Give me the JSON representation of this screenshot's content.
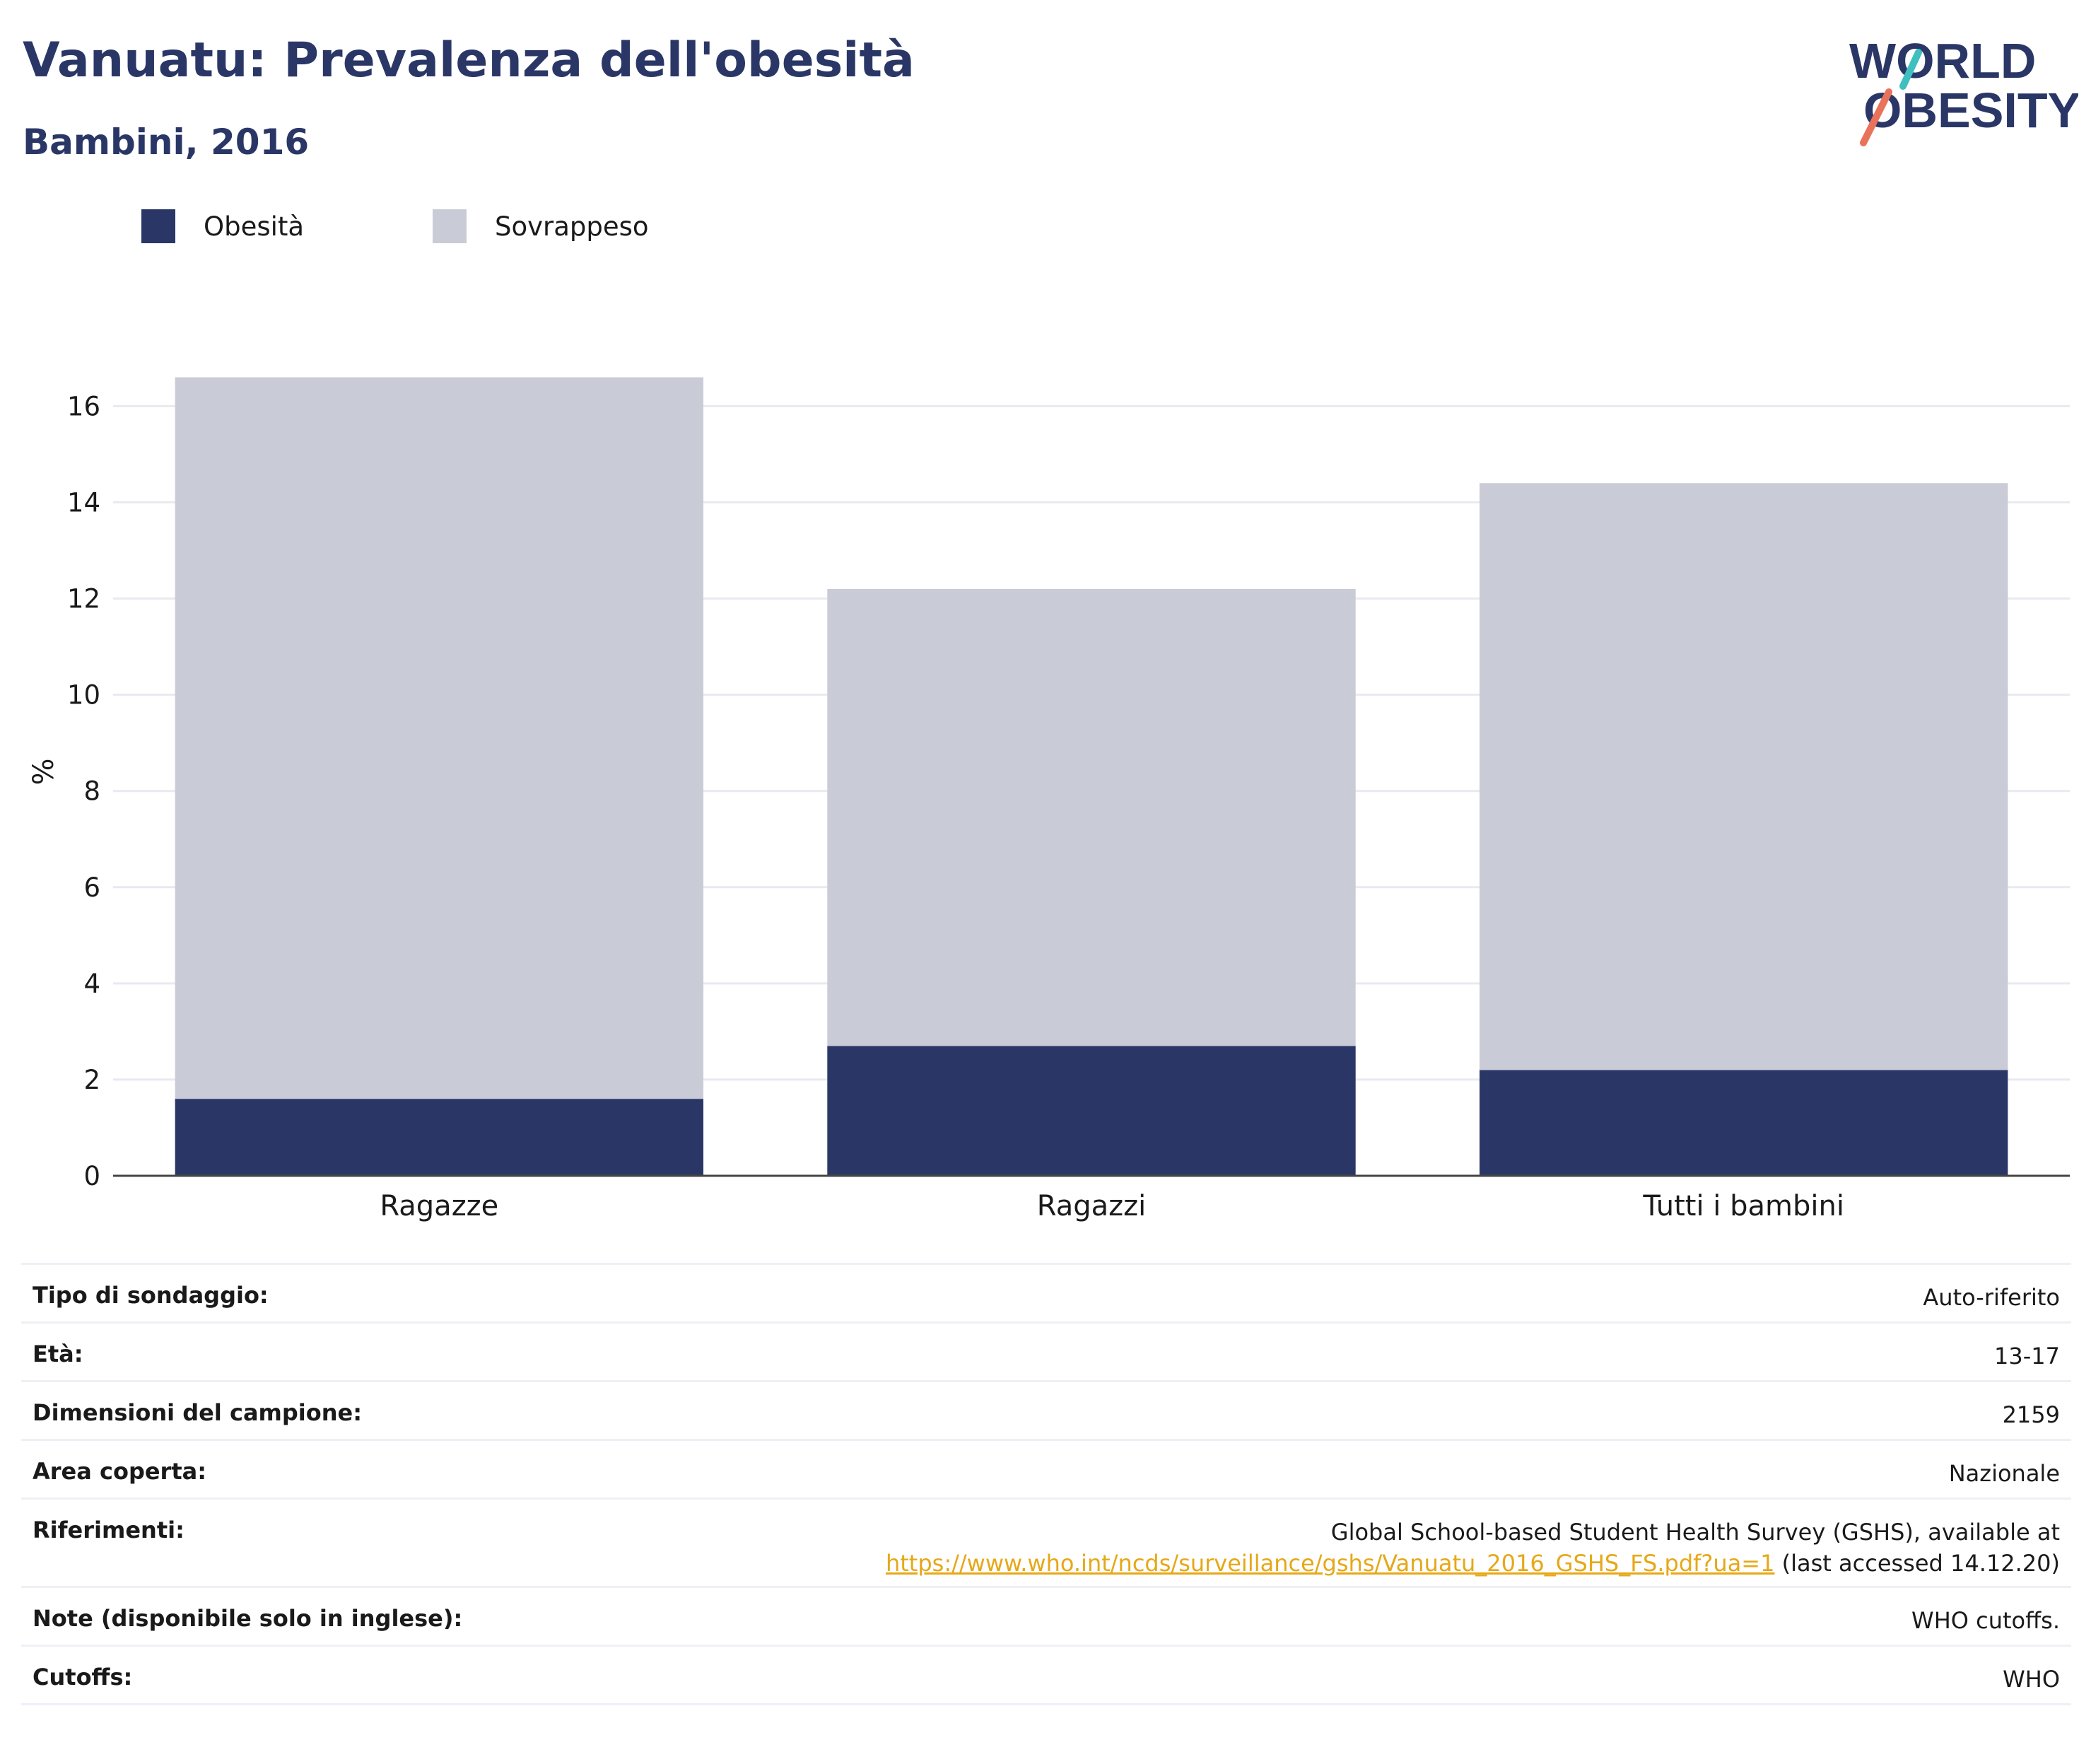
{
  "header": {
    "title": "Vanuatu: Prevalenza dell'obesità",
    "subtitle": "Bambini, 2016",
    "logo_line1": "WORLD",
    "logo_line2": "OBESITY"
  },
  "legend": [
    {
      "label": "Obesità",
      "color": "#2a3766"
    },
    {
      "label": "Sovrappeso",
      "color": "#c9cbd7"
    }
  ],
  "chart_data": {
    "type": "bar",
    "stacked": true,
    "categories": [
      "Ragazze",
      "Ragazzi",
      "Tutti i bambini"
    ],
    "series": [
      {
        "name": "Obesità",
        "color": "#2a3766",
        "values": [
          1.6,
          2.7,
          2.2
        ]
      },
      {
        "name": "Sovrappeso",
        "color": "#c9cbd7",
        "values": [
          15.0,
          9.5,
          12.2
        ]
      }
    ],
    "ylabel": "%",
    "ylim": [
      0,
      16.8
    ],
    "yticks": [
      0,
      2,
      4,
      6,
      8,
      10,
      12,
      14,
      16
    ],
    "grid": true,
    "legend_position": "top-left"
  },
  "info": {
    "rows": [
      {
        "key": "Tipo di sondaggio:",
        "value": "Auto-riferito"
      },
      {
        "key": "Età:",
        "value": "13-17"
      },
      {
        "key": "Dimensioni del campione:",
        "value": "2159"
      },
      {
        "key": "Area coperta:",
        "value": "Nazionale"
      }
    ],
    "references": {
      "key": "Riferimenti:",
      "text1": "Global School-based Student Health Survey (GSHS), available at",
      "link": "https://www.who.int/ncds/surveillance/gshs/Vanuatu_2016_GSHS_FS.pdf?ua=1",
      "text2": " (last accessed 14.12.20)"
    },
    "notes": {
      "key": "Note (disponibile solo in inglese):",
      "value": "WHO cutoffs."
    },
    "cutoffs": {
      "key": "Cutoffs:",
      "value": "WHO"
    }
  }
}
